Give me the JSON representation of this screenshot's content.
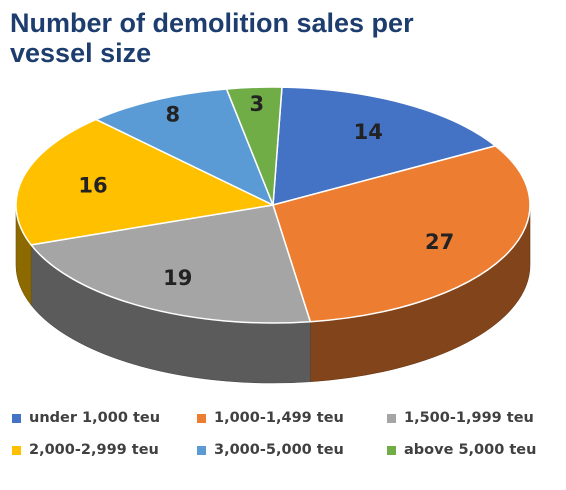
{
  "chart_data": {
    "type": "pie",
    "title": "Number of demolition sales per vessel size",
    "categories": [
      "under 1,000 teu",
      "1,000-1,499 teu",
      "1,500-1,999 teu",
      "2,000-2,999 teu",
      "3,000-5,000 teu",
      "above 5,000 teu"
    ],
    "values": [
      14,
      27,
      19,
      16,
      8,
      3
    ],
    "colors": [
      "#4472c4",
      "#ed7d31",
      "#a5a5a5",
      "#ffc000",
      "#5b9bd5",
      "#70ad47"
    ],
    "legend_position": "bottom",
    "style": "3d"
  }
}
